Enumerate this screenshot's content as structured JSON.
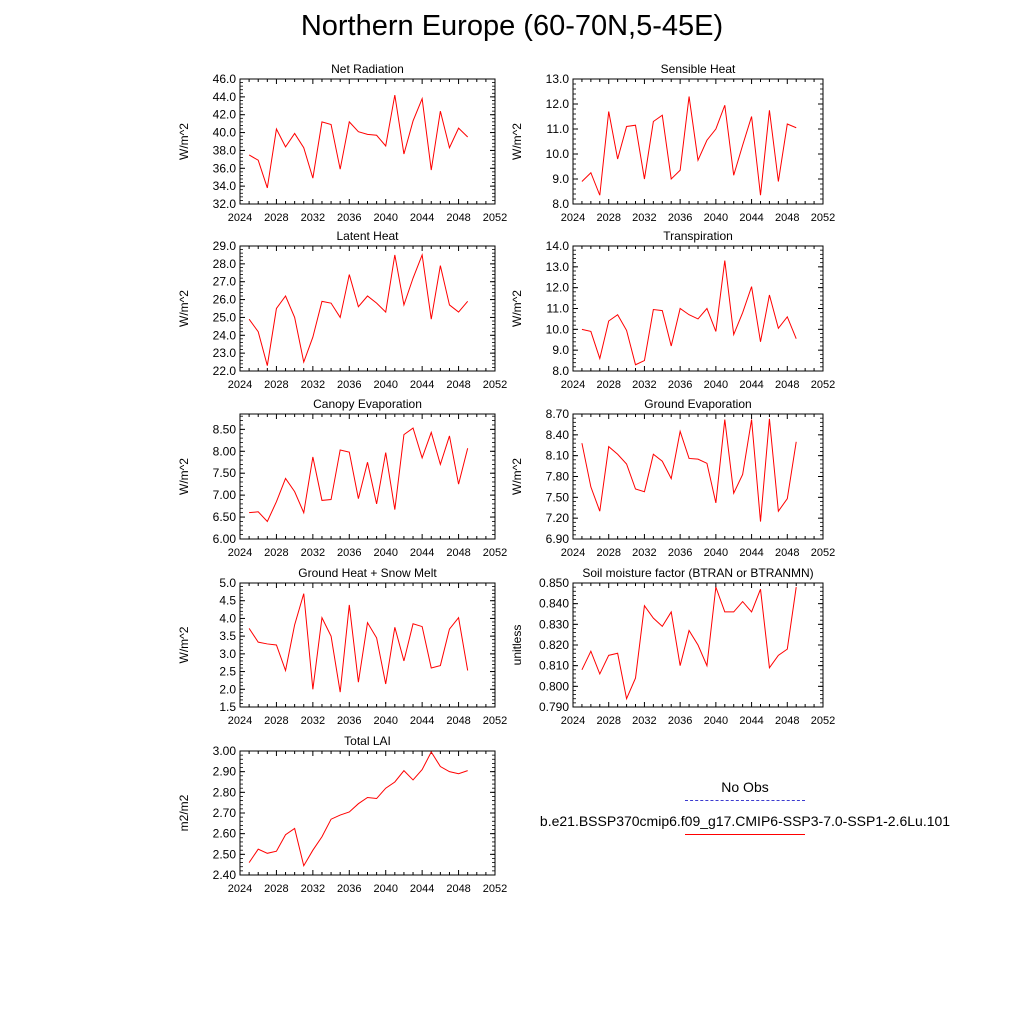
{
  "page": {
    "title": "Northern Europe (60-70N,5-45E)"
  },
  "legend": [
    {
      "label": "No Obs",
      "color": "#3b3bd0",
      "style": "dashed"
    },
    {
      "label": "b.e21.BSSP370cmip6.f09_g17.CMIP6-SSP3-7.0-SSP1-2.6Lu.101",
      "color": "#ff0000",
      "style": "solid"
    }
  ],
  "chart_data": [
    {
      "type": "line",
      "title": "Net Radiation",
      "xlabel": "",
      "ylabel": "W/m^2",
      "xlim": [
        2024,
        2052
      ],
      "ylim": [
        32.0,
        46.0
      ],
      "xticks": [
        2024,
        2028,
        2032,
        2036,
        2040,
        2044,
        2048,
        2052
      ],
      "yticks": [
        "32.0",
        "34.0",
        "36.0",
        "38.0",
        "40.0",
        "42.0",
        "44.0",
        "46.0"
      ],
      "x": [
        2025,
        2026,
        2027,
        2028,
        2029,
        2030,
        2031,
        2032,
        2033,
        2034,
        2035,
        2036,
        2037,
        2038,
        2039,
        2040,
        2041,
        2042,
        2043,
        2044,
        2045,
        2046,
        2047,
        2048,
        2049
      ],
      "series": [
        {
          "color": "#ff0000",
          "values": [
            37.5,
            36.9,
            33.8,
            40.4,
            38.4,
            39.9,
            38.3,
            34.9,
            41.2,
            40.9,
            35.9,
            41.2,
            40.1,
            39.8,
            39.7,
            38.5,
            44.2,
            37.6,
            41.3,
            43.8,
            35.8,
            42.4,
            38.3,
            40.5,
            39.5
          ]
        }
      ]
    },
    {
      "type": "line",
      "title": "Sensible Heat",
      "xlabel": "",
      "ylabel": "W/m^2",
      "xlim": [
        2024,
        2052
      ],
      "ylim": [
        8.0,
        13.0
      ],
      "xticks": [
        2024,
        2028,
        2032,
        2036,
        2040,
        2044,
        2048,
        2052
      ],
      "yticks": [
        "8.0",
        "9.0",
        "10.0",
        "11.0",
        "12.0",
        "13.0"
      ],
      "x": [
        2025,
        2026,
        2027,
        2028,
        2029,
        2030,
        2031,
        2032,
        2033,
        2034,
        2035,
        2036,
        2037,
        2038,
        2039,
        2040,
        2041,
        2042,
        2043,
        2044,
        2045,
        2046,
        2047,
        2048,
        2049
      ],
      "series": [
        {
          "color": "#ff0000",
          "values": [
            8.9,
            9.25,
            8.35,
            11.7,
            9.8,
            11.1,
            11.15,
            9.0,
            11.3,
            11.55,
            9.0,
            9.35,
            12.3,
            9.75,
            10.55,
            11.0,
            11.95,
            9.15,
            10.35,
            11.5,
            8.35,
            11.75,
            8.9,
            11.2,
            11.05
          ]
        }
      ]
    },
    {
      "type": "line",
      "title": "Latent Heat",
      "xlabel": "",
      "ylabel": "W/m^2",
      "xlim": [
        2024,
        2052
      ],
      "ylim": [
        22.0,
        29.0
      ],
      "xticks": [
        2024,
        2028,
        2032,
        2036,
        2040,
        2044,
        2048,
        2052
      ],
      "yticks": [
        "22.0",
        "23.0",
        "24.0",
        "25.0",
        "26.0",
        "27.0",
        "28.0",
        "29.0"
      ],
      "x": [
        2025,
        2026,
        2027,
        2028,
        2029,
        2030,
        2031,
        2032,
        2033,
        2034,
        2035,
        2036,
        2037,
        2038,
        2039,
        2040,
        2041,
        2042,
        2043,
        2044,
        2045,
        2046,
        2047,
        2048,
        2049
      ],
      "series": [
        {
          "color": "#ff0000",
          "values": [
            24.9,
            24.2,
            22.3,
            25.5,
            26.2,
            25.0,
            22.5,
            23.9,
            25.9,
            25.8,
            25.0,
            27.4,
            25.6,
            26.2,
            25.8,
            25.3,
            28.5,
            25.7,
            27.2,
            28.5,
            24.9,
            27.9,
            25.7,
            25.3,
            25.9
          ]
        }
      ]
    },
    {
      "type": "line",
      "title": "Transpiration",
      "xlabel": "",
      "ylabel": "W/m^2",
      "xlim": [
        2024,
        2052
      ],
      "ylim": [
        8.0,
        14.0
      ],
      "xticks": [
        2024,
        2028,
        2032,
        2036,
        2040,
        2044,
        2048,
        2052
      ],
      "yticks": [
        "8.0",
        "9.0",
        "10.0",
        "11.0",
        "12.0",
        "13.0",
        "14.0"
      ],
      "x": [
        2025,
        2026,
        2027,
        2028,
        2029,
        2030,
        2031,
        2032,
        2033,
        2034,
        2035,
        2036,
        2037,
        2038,
        2039,
        2040,
        2041,
        2042,
        2043,
        2044,
        2045,
        2046,
        2047,
        2048,
        2049
      ],
      "series": [
        {
          "color": "#ff0000",
          "values": [
            10.0,
            9.9,
            8.6,
            10.4,
            10.7,
            9.95,
            8.3,
            8.5,
            10.95,
            10.9,
            9.2,
            11.0,
            10.7,
            10.5,
            11.0,
            9.9,
            13.3,
            9.75,
            10.8,
            12.05,
            9.4,
            11.65,
            10.05,
            10.6,
            9.55
          ]
        }
      ]
    },
    {
      "type": "line",
      "title": "Canopy Evaporation",
      "xlabel": "",
      "ylabel": "W/m^2",
      "xlim": [
        2024,
        2052
      ],
      "ylim": [
        6.0,
        8.85
      ],
      "xticks": [
        2024,
        2028,
        2032,
        2036,
        2040,
        2044,
        2048,
        2052
      ],
      "yticks": [
        "6.00",
        "6.50",
        "7.00",
        "7.50",
        "8.00",
        "8.50"
      ],
      "x": [
        2025,
        2026,
        2027,
        2028,
        2029,
        2030,
        2031,
        2032,
        2033,
        2034,
        2035,
        2036,
        2037,
        2038,
        2039,
        2040,
        2041,
        2042,
        2043,
        2044,
        2045,
        2046,
        2047,
        2048,
        2049
      ],
      "series": [
        {
          "color": "#ff0000",
          "values": [
            6.6,
            6.62,
            6.4,
            6.85,
            7.38,
            7.08,
            6.6,
            7.87,
            6.88,
            6.9,
            8.03,
            7.98,
            6.92,
            7.75,
            6.8,
            7.97,
            6.67,
            8.38,
            8.53,
            7.85,
            8.43,
            7.7,
            8.35,
            7.25,
            8.07
          ]
        }
      ]
    },
    {
      "type": "line",
      "title": "Ground Evaporation",
      "xlabel": "",
      "ylabel": "W/m^2",
      "xlim": [
        2024,
        2052
      ],
      "ylim": [
        6.9,
        8.7
      ],
      "xticks": [
        2024,
        2028,
        2032,
        2036,
        2040,
        2044,
        2048,
        2052
      ],
      "yticks": [
        "6.90",
        "7.20",
        "7.50",
        "7.80",
        "8.10",
        "8.40",
        "8.70"
      ],
      "x": [
        2025,
        2026,
        2027,
        2028,
        2029,
        2030,
        2031,
        2032,
        2033,
        2034,
        2035,
        2036,
        2037,
        2038,
        2039,
        2040,
        2041,
        2042,
        2043,
        2044,
        2045,
        2046,
        2047,
        2048,
        2049
      ],
      "series": [
        {
          "color": "#ff0000",
          "values": [
            8.28,
            7.65,
            7.3,
            8.23,
            8.12,
            7.98,
            7.62,
            7.58,
            8.12,
            8.02,
            7.77,
            8.45,
            8.06,
            8.05,
            7.99,
            7.42,
            8.62,
            7.56,
            7.83,
            8.62,
            7.15,
            8.63,
            7.3,
            7.48,
            8.3
          ]
        }
      ]
    },
    {
      "type": "line",
      "title": "Ground Heat + Snow Melt",
      "xlabel": "",
      "ylabel": "W/m^2",
      "xlim": [
        2024,
        2052
      ],
      "ylim": [
        1.5,
        5.0
      ],
      "xticks": [
        2024,
        2028,
        2032,
        2036,
        2040,
        2044,
        2048,
        2052
      ],
      "yticks": [
        "1.5",
        "2.0",
        "2.5",
        "3.0",
        "3.5",
        "4.0",
        "4.5",
        "5.0"
      ],
      "x": [
        2025,
        2026,
        2027,
        2028,
        2029,
        2030,
        2031,
        2032,
        2033,
        2034,
        2035,
        2036,
        2037,
        2038,
        2039,
        2040,
        2041,
        2042,
        2043,
        2044,
        2045,
        2046,
        2047,
        2048,
        2049
      ],
      "series": [
        {
          "color": "#ff0000",
          "values": [
            3.72,
            3.33,
            3.28,
            3.25,
            2.53,
            3.82,
            4.7,
            2.0,
            4.02,
            3.5,
            1.92,
            4.38,
            2.2,
            3.88,
            3.45,
            2.15,
            3.75,
            2.8,
            3.85,
            3.77,
            2.6,
            2.67,
            3.7,
            4.02,
            2.53
          ]
        }
      ]
    },
    {
      "type": "line",
      "title": "Soil moisture factor (BTRAN or BTRANMN)",
      "xlabel": "",
      "ylabel": "unitless",
      "xlim": [
        2024,
        2052
      ],
      "ylim": [
        0.79,
        0.85
      ],
      "xticks": [
        2024,
        2028,
        2032,
        2036,
        2040,
        2044,
        2048,
        2052
      ],
      "yticks": [
        "0.790",
        "0.800",
        "0.810",
        "0.820",
        "0.830",
        "0.840",
        "0.850"
      ],
      "x": [
        2025,
        2026,
        2027,
        2028,
        2029,
        2030,
        2031,
        2032,
        2033,
        2034,
        2035,
        2036,
        2037,
        2038,
        2039,
        2040,
        2041,
        2042,
        2043,
        2044,
        2045,
        2046,
        2047,
        2048,
        2049
      ],
      "series": [
        {
          "color": "#ff0000",
          "values": [
            0.808,
            0.817,
            0.806,
            0.815,
            0.816,
            0.794,
            0.804,
            0.839,
            0.833,
            0.829,
            0.836,
            0.81,
            0.827,
            0.82,
            0.81,
            0.848,
            0.836,
            0.836,
            0.841,
            0.836,
            0.847,
            0.809,
            0.815,
            0.818,
            0.848
          ]
        }
      ]
    },
    {
      "type": "line",
      "title": "Total LAI",
      "xlabel": "",
      "ylabel": "m2/m2",
      "xlim": [
        2024,
        2052
      ],
      "ylim": [
        2.4,
        3.0
      ],
      "xticks": [
        2024,
        2028,
        2032,
        2036,
        2040,
        2044,
        2048,
        2052
      ],
      "yticks": [
        "2.40",
        "2.50",
        "2.60",
        "2.70",
        "2.80",
        "2.90",
        "3.00"
      ],
      "x": [
        2025,
        2026,
        2027,
        2028,
        2029,
        2030,
        2031,
        2032,
        2033,
        2034,
        2035,
        2036,
        2037,
        2038,
        2039,
        2040,
        2041,
        2042,
        2043,
        2044,
        2045,
        2046,
        2047,
        2048,
        2049
      ],
      "series": [
        {
          "color": "#ff0000",
          "values": [
            2.46,
            2.525,
            2.505,
            2.515,
            2.595,
            2.625,
            2.445,
            2.52,
            2.585,
            2.67,
            2.69,
            2.705,
            2.745,
            2.775,
            2.77,
            2.82,
            2.85,
            2.905,
            2.86,
            2.91,
            2.995,
            2.925,
            2.9,
            2.89,
            2.905
          ]
        }
      ]
    }
  ]
}
